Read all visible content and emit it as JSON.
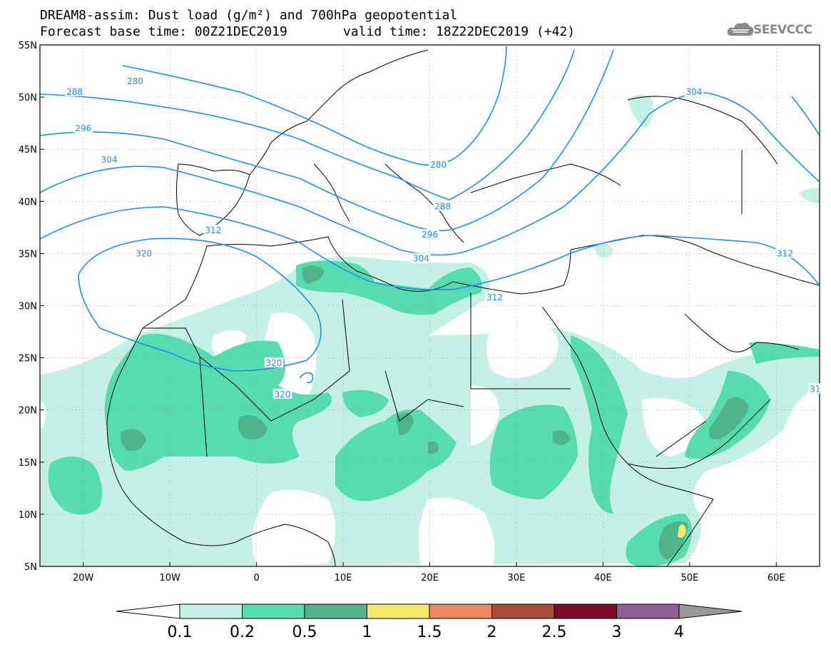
{
  "header": {
    "title_line1": "DREAM8-assim: Dust load (g/m²) and 700hPa geopotential",
    "title_line2a": "Forecast base time: 00Z21DEC2019",
    "title_line2b": "valid time: 18Z22DEC2019 (+42)",
    "logo_text": "SEEVCCC"
  },
  "map": {
    "lat_labels": [
      "55N",
      "50N",
      "45N",
      "40N",
      "35N",
      "30N",
      "25N",
      "20N",
      "15N",
      "10N",
      "5N"
    ],
    "lon_labels": [
      "20W",
      "10W",
      "0",
      "10E",
      "20E",
      "30E",
      "40E",
      "50E",
      "60E"
    ],
    "extent": {
      "lon_min": -25,
      "lon_max": 65,
      "lat_min": 5,
      "lat_max": 55
    },
    "contour_color": "#1e90e6",
    "contour_labels": [
      {
        "text": "280",
        "lon": -14,
        "lat": 51.5
      },
      {
        "text": "288",
        "lon": -21,
        "lat": 50.5
      },
      {
        "text": "296",
        "lon": -20,
        "lat": 47
      },
      {
        "text": "304",
        "lon": -17,
        "lat": 44
      },
      {
        "text": "312",
        "lon": -5,
        "lat": 37.2
      },
      {
        "text": "320",
        "lon": -13,
        "lat": 35
      },
      {
        "text": "280",
        "lon": 21,
        "lat": 43.5
      },
      {
        "text": "288",
        "lon": 21.5,
        "lat": 39.5
      },
      {
        "text": "296",
        "lon": 20,
        "lat": 36.8
      },
      {
        "text": "304",
        "lon": 19,
        "lat": 34.5
      },
      {
        "text": "312",
        "lon": 27.5,
        "lat": 30.8
      },
      {
        "text": "320",
        "lon": 2,
        "lat": 24.5
      },
      {
        "text": "320",
        "lon": 3,
        "lat": 21.5
      },
      {
        "text": "304",
        "lon": 50.5,
        "lat": 50.5
      },
      {
        "text": "312",
        "lon": 61,
        "lat": 35
      },
      {
        "text": "31",
        "lon": 64.5,
        "lat": 22
      }
    ]
  },
  "legend": {
    "levels": [
      "0.1",
      "0.2",
      "0.5",
      "1",
      "1.5",
      "2",
      "2.5",
      "3",
      "4"
    ],
    "colors": [
      "#c4f0e6",
      "#57dcb0",
      "#4fb48c",
      "#f5e96b",
      "#e88964",
      "#a84c3c",
      "#7a0a2c",
      "#8c5f96",
      "#999999"
    ]
  }
}
